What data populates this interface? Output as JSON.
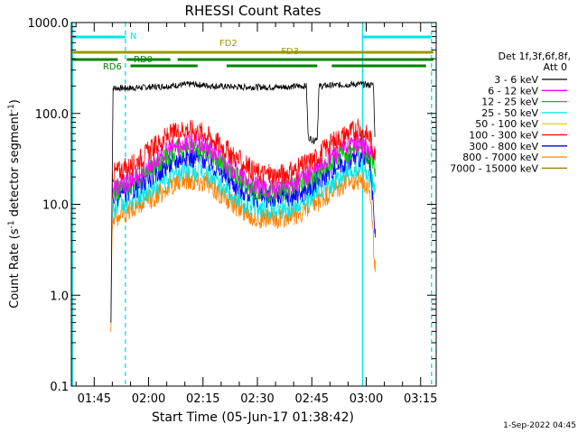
{
  "chart_data": {
    "type": "line",
    "title": "RHESSI Count Rates",
    "xlabel": "Start Time (05-Jun-17 01:38:42)",
    "ylabel_parts": [
      "Count Rate (s",
      "-1",
      " detector segment",
      "-1",
      ")"
    ],
    "yscale": "log",
    "ylim": [
      0.1,
      1000
    ],
    "xlim_minutes": [
      98.7,
      199.3
    ],
    "x_ticks": [
      {
        "min": 105,
        "label": "01:45"
      },
      {
        "min": 120,
        "label": "02:00"
      },
      {
        "min": 135,
        "label": "02:15"
      },
      {
        "min": 150,
        "label": "02:30"
      },
      {
        "min": 165,
        "label": "02:45"
      },
      {
        "min": 180,
        "label": "03:00"
      },
      {
        "min": 195,
        "label": "03:15"
      }
    ],
    "y_ticks": [
      {
        "value": 1000,
        "label": "1000.0"
      },
      {
        "value": 100,
        "label": "100.0"
      },
      {
        "value": 10,
        "label": "10.0"
      },
      {
        "value": 1,
        "label": "1.0"
      },
      {
        "value": 0.1,
        "label": "0.1"
      }
    ],
    "legend": {
      "header": [
        "Det 1f,3f,6f,8f,",
        "Att 0"
      ],
      "placement": "right"
    },
    "series": [
      {
        "name": "3 - 6 keV",
        "color": "#000000",
        "x": [
          109.6,
          110.2,
          115,
          125,
          132,
          138,
          145,
          156,
          162,
          163.5,
          164,
          165.5,
          166.5,
          167,
          172,
          178,
          181,
          182,
          182.4
        ],
        "y": [
          0.5,
          190,
          190,
          200,
          210,
          200,
          195,
          195,
          200,
          200,
          55,
          50,
          55,
          200,
          205,
          210,
          205,
          210,
          55
        ]
      },
      {
        "name": "6 - 12 keV",
        "color": "#ff00ff",
        "x": [
          110,
          115,
          120,
          125,
          130,
          135,
          140,
          145,
          150,
          155,
          160,
          163,
          166,
          170,
          175,
          178,
          181,
          182.5
        ],
        "y": [
          15,
          18,
          26,
          38,
          48,
          45,
          32,
          21,
          15,
          15,
          17,
          20,
          24,
          33,
          44,
          48,
          38,
          30
        ]
      },
      {
        "name": "12 - 25 keV",
        "color": "#00cc00",
        "x": [
          110,
          115,
          120,
          125,
          130,
          135,
          140,
          145,
          150,
          155,
          160,
          163,
          166,
          170,
          175,
          178,
          181,
          182.5
        ],
        "y": [
          14,
          17,
          24,
          34,
          42,
          40,
          29,
          19,
          14,
          14,
          15,
          18,
          21,
          30,
          38,
          42,
          34,
          25
        ]
      },
      {
        "name": "25 - 50 keV",
        "color": "#00e5e5",
        "x": [
          110,
          115,
          120,
          125,
          130,
          135,
          140,
          145,
          150,
          155,
          160,
          163,
          166,
          170,
          175,
          178,
          181,
          182.5
        ],
        "y": [
          9,
          10.5,
          14,
          19,
          24,
          23,
          16,
          11,
          9,
          9,
          9.5,
          11,
          13,
          17,
          22,
          24,
          20,
          15
        ]
      },
      {
        "name": "50 - 100 keV",
        "color": "#dddd00",
        "x": [],
        "y": []
      },
      {
        "name": "100 - 300 keV",
        "color": "#ff0000",
        "x": [
          110,
          115,
          120,
          125,
          130,
          135,
          140,
          145,
          150,
          155,
          160,
          163,
          166,
          170,
          175,
          178,
          181,
          182.5
        ],
        "y": [
          22,
          26,
          38,
          55,
          68,
          62,
          45,
          30,
          22,
          21,
          23,
          27,
          32,
          46,
          62,
          68,
          55,
          35
        ]
      },
      {
        "name": "300 - 800 keV",
        "color": "#0000ff",
        "x": [
          110,
          115,
          120,
          125,
          130,
          135,
          140,
          145,
          150,
          155,
          160,
          163,
          166,
          170,
          175,
          178,
          181,
          182.5
        ],
        "y": [
          12,
          14,
          19,
          27,
          34,
          32,
          23,
          15,
          12,
          12,
          12.5,
          14,
          17,
          24,
          31,
          34,
          28,
          4.3
        ]
      },
      {
        "name": "800 - 7000 keV",
        "color": "#ff8000",
        "x": [
          109.6,
          110,
          115,
          120,
          125,
          130,
          135,
          140,
          145,
          150,
          155,
          160,
          163,
          166,
          170,
          175,
          178,
          181,
          182.5
        ],
        "y": [
          0.5,
          7,
          8.5,
          11,
          15,
          19,
          18,
          13,
          9,
          7,
          7,
          7.5,
          8.5,
          10,
          13,
          17,
          19,
          16,
          1.8
        ]
      },
      {
        "name": "7000 - 15000 keV",
        "color": "#997700",
        "x": [],
        "y": []
      }
    ],
    "annotations": {
      "night_markers": [
        {
          "label": "N",
          "start_min": 99,
          "end_min": 113.6,
          "color": "#00e5e5"
        },
        {
          "label": "",
          "start_min": 179,
          "end_min": 198,
          "color": "#00e5e5"
        }
      ],
      "attenuator_bars": [
        {
          "label": "FD2",
          "start_min": 99,
          "end_min": 198.5,
          "level": 1,
          "color": "#999900",
          "label_at_min": 142
        },
        {
          "label": "FD3",
          "start_min": 99,
          "end_min": 198.5,
          "level": 1,
          "color": "#999900",
          "label_at_min": 159
        },
        {
          "label": "RD0",
          "start_min": 99,
          "end_min": 198.5,
          "level": 2,
          "color": "#008000",
          "label_at_min": 118.5
        },
        {
          "label": "RD6",
          "start_min": 99,
          "end_min": 196.5,
          "level": 3,
          "color": "#008000",
          "label_at_min": 110
        }
      ],
      "vertical_lines": [
        {
          "min": 99,
          "style": "solid",
          "color": "#00e5e5"
        },
        {
          "min": 113.6,
          "style": "dashed",
          "color": "#00e5e5"
        },
        {
          "min": 179,
          "style": "solid",
          "color": "#00e5e5"
        },
        {
          "min": 198,
          "style": "dashed",
          "color": "#00e5e5"
        }
      ]
    },
    "footer": "1-Sep-2022 04:45",
    "grid": false
  }
}
